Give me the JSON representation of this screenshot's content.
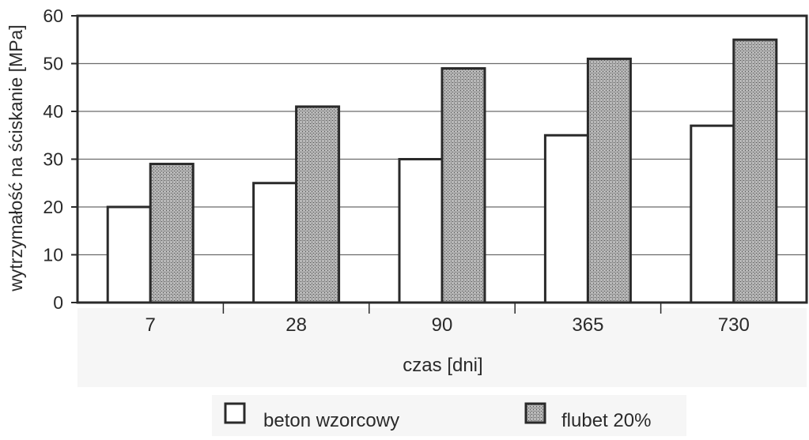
{
  "chart_data": {
    "type": "bar",
    "title": "",
    "xlabel": "czas [dni]",
    "ylabel": "wytrzymałość na ściskanie [MPa]",
    "ylim": [
      0,
      60
    ],
    "yticks": [
      0,
      10,
      20,
      30,
      40,
      50,
      60
    ],
    "grid": true,
    "legend_position": "bottom",
    "categories": [
      "7",
      "28",
      "90",
      "365",
      "730"
    ],
    "series": [
      {
        "name": "beton wzorcowy",
        "values": [
          20,
          25,
          30,
          35,
          37
        ],
        "fill": "#ffffff",
        "pattern": "none"
      },
      {
        "name": "flubet 20%",
        "values": [
          29,
          41,
          49,
          51,
          55
        ],
        "fill": "#a8a8a8",
        "pattern": "dotted-hatch"
      }
    ],
    "colors": {
      "axis": "#2a2a2a",
      "grid": "#6b6b6b",
      "bar_outline": "#2a2a2a"
    }
  }
}
